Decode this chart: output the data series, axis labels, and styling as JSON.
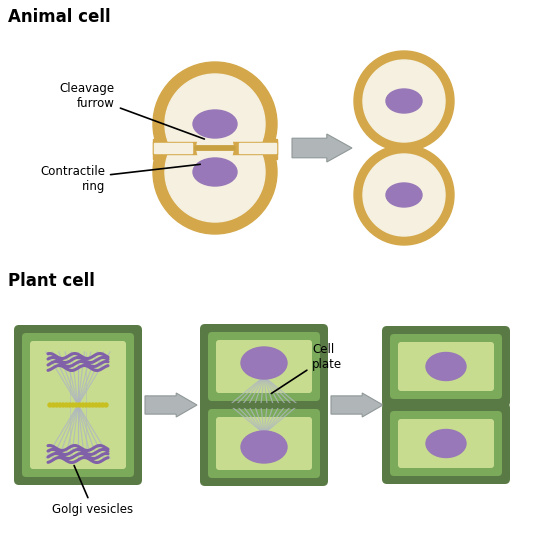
{
  "title_animal": "Animal cell",
  "title_plant": "Plant cell",
  "label_cleavage": "Cleavage\nfurrow",
  "label_contractile": "Contractile\nring",
  "label_cell_plate": "Cell\nplate",
  "label_golgi": "Golgi vesicles",
  "bg_color": "#ffffff",
  "animal_outer_color": "#d4a84a",
  "animal_inner_color": "#f5f0e0",
  "nucleus_color": "#9878b8",
  "plant_outer_color": "#5a7a45",
  "plant_mid_color": "#7aaa5a",
  "plant_inner_color": "#c8dc90",
  "spindle_color": "#b0b8c0",
  "cleavage_color": "#c8a040",
  "arrow_color": "#b0b5b8",
  "arrow_edge": "#909898"
}
